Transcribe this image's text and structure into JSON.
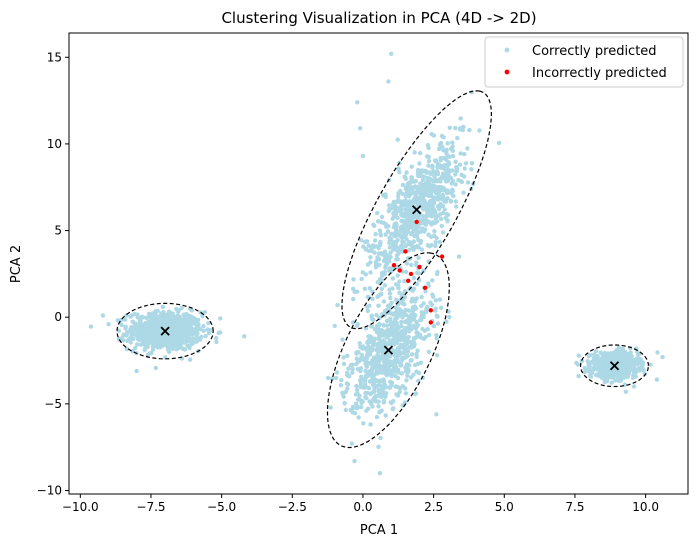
{
  "chart_data": {
    "type": "scatter",
    "title": "Clustering Visualization in PCA (4D -> 2D)",
    "xlabel": "PCA 1",
    "ylabel": "PCA 2",
    "xlim": [
      -10.4,
      11.5
    ],
    "ylim": [
      -10.2,
      16.4
    ],
    "xticks": [
      -10.0,
      -7.5,
      -5.0,
      -2.5,
      0.0,
      2.5,
      5.0,
      7.5,
      10.0
    ],
    "xtick_labels": [
      "−10.0",
      "−7.5",
      "−5.0",
      "−2.5",
      "0.0",
      "2.5",
      "5.0",
      "7.5",
      "10.0"
    ],
    "yticks": [
      -10,
      -5,
      0,
      5,
      10,
      15
    ],
    "ytick_labels": [
      "−10",
      "−5",
      "0",
      "5",
      "10",
      "15"
    ],
    "grid": false,
    "legend_position": "top-right",
    "series": [
      {
        "name": "Correctly predicted",
        "color": "#add8e6",
        "clusters": [
          {
            "center": [
              -7.0,
              -0.8
            ],
            "sd_major": 0.65,
            "sd_minor": 0.55,
            "angle": 0,
            "count": 750
          },
          {
            "center": [
              1.9,
              6.2
            ],
            "sd_major": 2.2,
            "sd_minor": 0.55,
            "angle": 72,
            "count": 750
          },
          {
            "center": [
              0.9,
              -1.9
            ],
            "sd_major": 1.85,
            "sd_minor": 0.6,
            "angle": 75,
            "count": 750
          },
          {
            "center": [
              8.9,
              -2.8
            ],
            "sd_major": 0.42,
            "sd_minor": 0.35,
            "angle": 0,
            "count": 750
          }
        ],
        "extra_points": [
          [
            -4.2,
            -1.1
          ],
          [
            1.0,
            15.2
          ],
          [
            -0.2,
            12.4
          ],
          [
            0.9,
            13.6
          ],
          [
            -0.1,
            10.9
          ],
          [
            3.5,
            7.8
          ],
          [
            3.4,
            3.5
          ],
          [
            0.1,
            3.9
          ],
          [
            -0.9,
            0.7
          ],
          [
            -1.0,
            -0.5
          ],
          [
            -0.95,
            -3.5
          ],
          [
            0.6,
            -9.0
          ],
          [
            -0.3,
            -8.3
          ],
          [
            2.6,
            -5.6
          ],
          [
            -9.2,
            0.1
          ],
          [
            -9.0,
            -0.4
          ],
          [
            10.6,
            -2.3
          ],
          [
            10.4,
            -3.6
          ],
          [
            9.3,
            -4.3
          ],
          [
            0.0,
            9.3
          ]
        ]
      },
      {
        "name": "Incorrectly predicted",
        "color": "#ff0000",
        "points": [
          [
            1.9,
            5.5
          ],
          [
            1.5,
            3.8
          ],
          [
            1.1,
            3.0
          ],
          [
            1.3,
            2.7
          ],
          [
            1.7,
            2.5
          ],
          [
            1.6,
            2.1
          ],
          [
            2.2,
            1.7
          ],
          [
            2.8,
            3.5
          ],
          [
            2.4,
            0.4
          ],
          [
            2.4,
            -0.3
          ],
          [
            2.0,
            2.9
          ]
        ]
      }
    ],
    "centroids": [
      [
        -7.0,
        -0.8
      ],
      [
        1.9,
        6.2
      ],
      [
        0.9,
        -1.9
      ],
      [
        8.9,
        -2.8
      ]
    ],
    "ellipses": [
      {
        "center": [
          -7.0,
          -0.8
        ],
        "rx": 1.7,
        "ry": 1.6,
        "angle": 0
      },
      {
        "center": [
          1.9,
          6.2
        ],
        "rx": 7.2,
        "ry": 1.5,
        "angle": 72
      },
      {
        "center": [
          0.9,
          -1.9
        ],
        "rx": 5.8,
        "ry": 1.6,
        "angle": 75
      },
      {
        "center": [
          8.9,
          -2.8
        ],
        "rx": 1.2,
        "ry": 1.2,
        "angle": 0
      }
    ]
  }
}
